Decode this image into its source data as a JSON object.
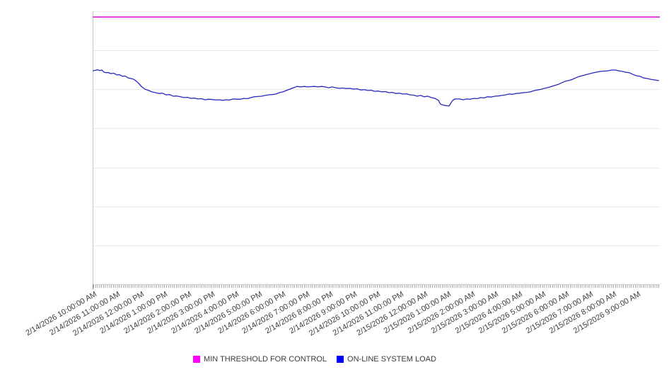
{
  "chart_data": {
    "type": "line",
    "title": "",
    "xlabel": "",
    "ylabel": "",
    "x_unit": "hours since 2/14/2026 10:00:00 AM",
    "xlim": [
      0,
      24
    ],
    "ylim": [
      0,
      100
    ],
    "y_units": "unlabeled axis (values normalized 0-100 of plot height)",
    "y_tick_labels_visible": false,
    "horizontal_gridline_divisions": 7,
    "grid": "horizontal only",
    "legend_position": "bottom-center",
    "minor_x_ticks_per_hour": 12,
    "x_tick_labels": [
      "2/14/2026 10:00:00 AM",
      "2/14/2026 11:00:00 AM",
      "2/14/2026 12:00:00 PM",
      "2/14/2026 1:00:00 PM",
      "2/14/2026 2:00:00 PM",
      "2/14/2026 3:00:00 PM",
      "2/14/2026 4:00:00 PM",
      "2/14/2026 5:00:00 PM",
      "2/14/2026 6:00:00 PM",
      "2/14/2026 7:00:00 PM",
      "2/14/2026 8:00:00 PM",
      "2/14/2026 9:00:00 PM",
      "2/14/2026 10:00:00 PM",
      "2/14/2026 11:00:00 PM",
      "2/15/2026 12:00:00 AM",
      "2/15/2026 1:00:00 AM",
      "2/15/2026 2:00:00 AM",
      "2/15/2026 3:00:00 AM",
      "2/15/2026 4:00:00 AM",
      "2/15/2026 5:00:00 AM",
      "2/15/2026 6:00:00 AM",
      "2/15/2026 7:00:00 AM",
      "2/15/2026 8:00:00 AM",
      "2/15/2026 9:00:00 AM"
    ],
    "series": [
      {
        "name": "MIN THRESHOLD FOR CONTROL",
        "legend_color": "#ff00ff",
        "line_color": "#de1ade",
        "line_width": 1.6,
        "kind": "constant",
        "value": 97.9
      },
      {
        "name": "ON-LINE SYSTEM LOAD",
        "legend_color": "#0000ff",
        "line_color": "#2828bb",
        "line_width": 1.3,
        "kind": "points",
        "points": [
          [
            0.0,
            78.2
          ],
          [
            0.12,
            78.4
          ],
          [
            0.21,
            78.6
          ],
          [
            0.3,
            78.3
          ],
          [
            0.39,
            78.5
          ],
          [
            0.48,
            77.7
          ],
          [
            0.57,
            77.5
          ],
          [
            0.66,
            77.6
          ],
          [
            0.75,
            77.2
          ],
          [
            0.9,
            77.3
          ],
          [
            1.02,
            76.7
          ],
          [
            1.14,
            76.8
          ],
          [
            1.26,
            76.2
          ],
          [
            1.38,
            76.3
          ],
          [
            1.5,
            75.6
          ],
          [
            1.62,
            75.4
          ],
          [
            1.74,
            75.1
          ],
          [
            1.86,
            74.3
          ],
          [
            1.98,
            73.3
          ],
          [
            2.06,
            72.5
          ],
          [
            2.21,
            71.5
          ],
          [
            2.36,
            71.0
          ],
          [
            2.51,
            70.5
          ],
          [
            2.66,
            70.2
          ],
          [
            2.81,
            69.9
          ],
          [
            2.96,
            70.0
          ],
          [
            3.11,
            69.4
          ],
          [
            3.26,
            69.5
          ],
          [
            3.41,
            68.9
          ],
          [
            3.56,
            69.0
          ],
          [
            3.71,
            68.7
          ],
          [
            3.86,
            68.4
          ],
          [
            4.01,
            68.5
          ],
          [
            4.16,
            68.1
          ],
          [
            4.31,
            68.2
          ],
          [
            4.46,
            67.9
          ],
          [
            4.61,
            68.0
          ],
          [
            4.76,
            67.6
          ],
          [
            4.91,
            67.8
          ],
          [
            5.06,
            67.7
          ],
          [
            5.21,
            67.5
          ],
          [
            5.36,
            67.6
          ],
          [
            5.5,
            67.4
          ],
          [
            5.65,
            67.6
          ],
          [
            5.8,
            67.5
          ],
          [
            5.95,
            67.9
          ],
          [
            6.1,
            67.8
          ],
          [
            6.25,
            67.8
          ],
          [
            6.4,
            68.1
          ],
          [
            6.55,
            68.0
          ],
          [
            6.7,
            68.4
          ],
          [
            6.85,
            68.7
          ],
          [
            7.0,
            68.8
          ],
          [
            7.15,
            68.9
          ],
          [
            7.3,
            69.2
          ],
          [
            7.45,
            69.4
          ],
          [
            7.6,
            69.5
          ],
          [
            7.75,
            69.7
          ],
          [
            7.9,
            70.2
          ],
          [
            8.05,
            70.5
          ],
          [
            8.2,
            71.0
          ],
          [
            8.35,
            71.5
          ],
          [
            8.5,
            72.0
          ],
          [
            8.65,
            72.5
          ],
          [
            8.8,
            72.3
          ],
          [
            8.95,
            72.5
          ],
          [
            9.09,
            72.3
          ],
          [
            9.24,
            72.4
          ],
          [
            9.39,
            72.5
          ],
          [
            9.54,
            72.3
          ],
          [
            9.69,
            72.5
          ],
          [
            9.84,
            72.3
          ],
          [
            9.99,
            72.0
          ],
          [
            10.14,
            72.3
          ],
          [
            10.29,
            72.0
          ],
          [
            10.44,
            71.8
          ],
          [
            10.59,
            71.9
          ],
          [
            10.74,
            71.7
          ],
          [
            10.89,
            71.8
          ],
          [
            11.04,
            71.5
          ],
          [
            11.19,
            71.6
          ],
          [
            11.34,
            71.2
          ],
          [
            11.49,
            71.3
          ],
          [
            11.64,
            71.0
          ],
          [
            11.79,
            71.1
          ],
          [
            11.94,
            70.7
          ],
          [
            12.09,
            70.8
          ],
          [
            12.24,
            70.5
          ],
          [
            12.39,
            70.6
          ],
          [
            12.53,
            70.2
          ],
          [
            12.68,
            70.3
          ],
          [
            12.83,
            69.9
          ],
          [
            12.98,
            70.0
          ],
          [
            13.13,
            69.7
          ],
          [
            13.28,
            69.8
          ],
          [
            13.43,
            69.4
          ],
          [
            13.58,
            69.3
          ],
          [
            13.73,
            68.9
          ],
          [
            13.88,
            69.2
          ],
          [
            14.03,
            68.7
          ],
          [
            14.18,
            68.9
          ],
          [
            14.33,
            68.4
          ],
          [
            14.48,
            68.1
          ],
          [
            14.63,
            67.4
          ],
          [
            14.71,
            66.1
          ],
          [
            14.78,
            65.8
          ],
          [
            14.86,
            65.6
          ],
          [
            14.93,
            65.5
          ],
          [
            15.0,
            65.4
          ],
          [
            15.08,
            65.3
          ],
          [
            15.15,
            66.3
          ],
          [
            15.23,
            67.3
          ],
          [
            15.31,
            67.8
          ],
          [
            15.38,
            67.9
          ],
          [
            15.53,
            67.9
          ],
          [
            15.68,
            67.6
          ],
          [
            15.83,
            67.9
          ],
          [
            15.97,
            67.8
          ],
          [
            16.12,
            68.1
          ],
          [
            16.27,
            68.0
          ],
          [
            16.42,
            68.4
          ],
          [
            16.57,
            68.3
          ],
          [
            16.72,
            68.7
          ],
          [
            16.87,
            68.6
          ],
          [
            17.02,
            68.9
          ],
          [
            17.17,
            69.0
          ],
          [
            17.32,
            69.2
          ],
          [
            17.47,
            69.4
          ],
          [
            17.62,
            69.7
          ],
          [
            17.77,
            69.6
          ],
          [
            17.92,
            69.9
          ],
          [
            18.07,
            70.0
          ],
          [
            18.22,
            70.2
          ],
          [
            18.37,
            70.3
          ],
          [
            18.52,
            70.5
          ],
          [
            18.67,
            70.9
          ],
          [
            18.82,
            71.2
          ],
          [
            18.97,
            71.4
          ],
          [
            19.12,
            71.8
          ],
          [
            19.27,
            72.1
          ],
          [
            19.42,
            72.5
          ],
          [
            19.57,
            72.9
          ],
          [
            19.72,
            73.3
          ],
          [
            19.87,
            73.9
          ],
          [
            20.01,
            74.4
          ],
          [
            20.16,
            74.7
          ],
          [
            20.31,
            75.1
          ],
          [
            20.46,
            75.7
          ],
          [
            20.61,
            76.2
          ],
          [
            20.76,
            76.5
          ],
          [
            20.91,
            76.9
          ],
          [
            21.06,
            77.2
          ],
          [
            21.21,
            77.5
          ],
          [
            21.36,
            77.8
          ],
          [
            21.51,
            78.0
          ],
          [
            21.66,
            78.1
          ],
          [
            21.81,
            78.2
          ],
          [
            21.96,
            78.5
          ],
          [
            22.11,
            78.5
          ],
          [
            22.26,
            78.2
          ],
          [
            22.41,
            78.0
          ],
          [
            22.56,
            77.7
          ],
          [
            22.71,
            77.5
          ],
          [
            22.86,
            76.9
          ],
          [
            23.01,
            76.4
          ],
          [
            23.16,
            76.2
          ],
          [
            23.31,
            75.6
          ],
          [
            23.46,
            75.4
          ],
          [
            23.61,
            75.1
          ],
          [
            23.75,
            74.9
          ],
          [
            23.96,
            74.6
          ]
        ]
      }
    ]
  },
  "legend": {
    "items": [
      {
        "label": "MIN THRESHOLD FOR CONTROL",
        "swatch_color": "#ff00ff"
      },
      {
        "label": "ON-LINE SYSTEM LOAD",
        "swatch_color": "#0000ff"
      }
    ]
  },
  "colors": {
    "background": "#ffffff",
    "gridline": "#eaeaea",
    "x_axis_line": "#cccccc",
    "y_axis_line": "#c4c4c4",
    "minor_tick": "#ababab",
    "axis_label_text": "#3d3d3d",
    "legend_text": "#3b3b3b"
  }
}
